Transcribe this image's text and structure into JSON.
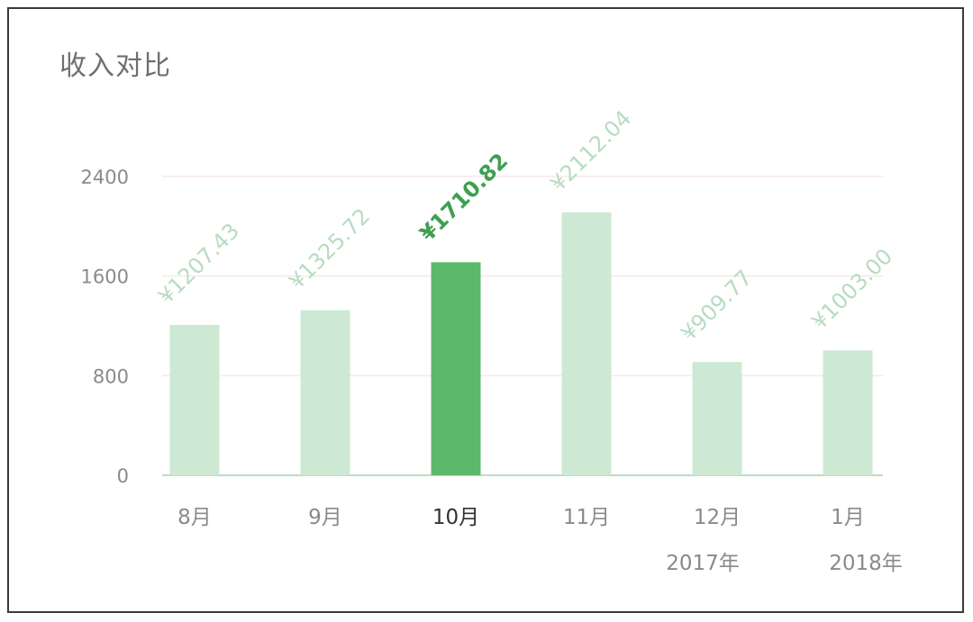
{
  "title": "收入对比",
  "colors": {
    "bar": "#cde9d3",
    "bar_selected": "#5cb86a",
    "label": "#b7dcc0",
    "label_selected": "#3e9f52",
    "grid": "#f7e8e8",
    "baseline": "#b8dfc2"
  },
  "chart_data": {
    "type": "bar",
    "title": "收入对比",
    "xlabel": "",
    "ylabel": "",
    "ylim": [
      0,
      2400
    ],
    "yticks": [
      0,
      800,
      1600,
      2400
    ],
    "ytick_labels": [
      "0",
      "800",
      "1600",
      "2400"
    ],
    "grid": true,
    "categories": [
      "8月",
      "9月",
      "10月",
      "11月",
      "12月",
      "1月"
    ],
    "sublabels": [
      "",
      "",
      "",
      "",
      "2017年",
      "2018年"
    ],
    "values": [
      1207.43,
      1325.72,
      1710.82,
      2112.04,
      909.77,
      1003.0
    ],
    "value_labels": [
      "¥1207.43",
      "¥1325.72",
      "¥1710.82",
      "¥2112.04",
      "¥909.77",
      "¥1003.00"
    ],
    "selected_index": 2
  }
}
